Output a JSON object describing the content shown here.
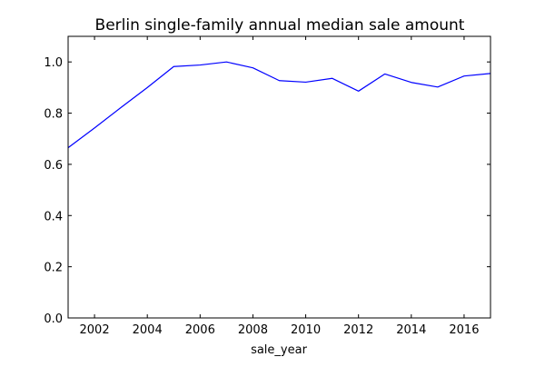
{
  "chart_data": {
    "type": "line",
    "title": "Berlin single-family annual median sale amount",
    "xlabel": "sale_year",
    "ylabel": "",
    "xlim": [
      2001,
      2017
    ],
    "ylim": [
      0.0,
      1.1
    ],
    "grid": false,
    "legend": "none",
    "x_ticks": [
      2002,
      2004,
      2006,
      2008,
      2010,
      2012,
      2014,
      2016
    ],
    "y_ticks": [
      "0.0",
      "0.2",
      "0.4",
      "0.6",
      "0.8",
      "1.0"
    ],
    "series": [
      {
        "color": "#0000ff",
        "x": [
          2001,
          2002,
          2003,
          2004,
          2005,
          2006,
          2007,
          2008,
          2009,
          2010,
          2011,
          2012,
          2013,
          2014,
          2015,
          2016,
          2017
        ],
        "values": [
          0.665,
          0.742,
          0.822,
          0.9,
          0.982,
          0.988,
          1.0,
          0.977,
          0.927,
          0.921,
          0.936,
          0.886,
          0.953,
          0.92,
          0.902,
          0.945,
          0.955
        ]
      }
    ]
  }
}
